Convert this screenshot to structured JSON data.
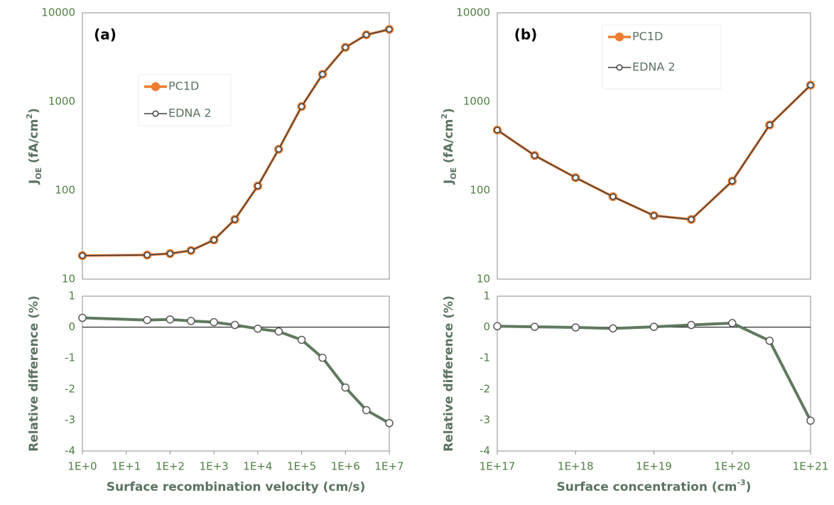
{
  "chart_data": [
    {
      "type": "line",
      "title": "(a)",
      "xscale": "log",
      "yscale": "log",
      "xlim": [
        1,
        10000000
      ],
      "ylim": [
        10,
        10000
      ],
      "yticks": [
        10,
        100,
        1000,
        10000
      ],
      "ylabel": [
        "J",
        "OE",
        " (fA/cm",
        "2",
        ")"
      ],
      "x": [
        1,
        30,
        100,
        300,
        1000,
        3000,
        10000,
        30000,
        100000,
        300000,
        1000000,
        3000000,
        10000000
      ],
      "series": [
        {
          "name": "PC1D",
          "color": "#ed7d31",
          "values": [
            18.4,
            18.7,
            19.4,
            21,
            27.6,
            47,
            112,
            290,
            880,
            2030,
            4080,
            5650,
            6500
          ]
        },
        {
          "name": "EDNA 2",
          "color": "#404040",
          "values": [
            18.4,
            18.7,
            19.4,
            21,
            27.6,
            47,
            112,
            290,
            880,
            2030,
            4080,
            5650,
            6500
          ]
        }
      ]
    },
    {
      "type": "line",
      "xscale": "log",
      "yscale": "linear",
      "xlim": [
        1,
        10000000
      ],
      "xticks": [
        {
          "value": 1,
          "label": "1E+0"
        },
        {
          "value": 10,
          "label": "1E+1"
        },
        {
          "value": 100,
          "label": "1E+2"
        },
        {
          "value": 1000,
          "label": "1E+3"
        },
        {
          "value": 10000,
          "label": "1E+4"
        },
        {
          "value": 100000,
          "label": "1E+5"
        },
        {
          "value": 1000000,
          "label": "1E+6"
        },
        {
          "value": 10000000,
          "label": "1E+7"
        }
      ],
      "ylim": [
        -4,
        1
      ],
      "yticks": [
        1,
        0,
        -1,
        -2,
        -3,
        -4
      ],
      "xlabel": [
        "Surface recombination velocity (cm/s)"
      ],
      "ylabel": [
        "Relative difference (%)"
      ],
      "x": [
        1,
        30,
        100,
        300,
        1000,
        3000,
        10000,
        30000,
        100000,
        300000,
        1000000,
        3000000,
        10000000
      ],
      "color": "#5e7a5e",
      "values": [
        0.3,
        0.23,
        0.25,
        0.2,
        0.16,
        0.07,
        -0.05,
        -0.14,
        -0.41,
        -0.99,
        -1.95,
        -2.68,
        -3.1
      ]
    },
    {
      "type": "line",
      "title": "(b)",
      "xscale": "log",
      "yscale": "log",
      "xlim": [
        1e+17,
        1e+21
      ],
      "ylim": [
        10,
        10000
      ],
      "yticks": [
        10,
        100,
        1000,
        10000
      ],
      "ylabel": [
        "J",
        "OE",
        " (fA/cm",
        "2",
        ")"
      ],
      "x": [
        1e+17,
        3e+17,
        1e+18,
        3e+18,
        1e+19,
        3e+19,
        1e+20,
        3e+20,
        1e+21
      ],
      "series": [
        {
          "name": "PC1D",
          "color": "#ed7d31",
          "values": [
            478,
            247,
            139,
            85,
            52,
            47,
            127,
            545,
            1530
          ]
        },
        {
          "name": "EDNA 2",
          "color": "#404040",
          "values": [
            478,
            247,
            139,
            85,
            52,
            47,
            127,
            545,
            1530
          ]
        }
      ]
    },
    {
      "type": "line",
      "xscale": "log",
      "yscale": "linear",
      "xlim": [
        1e+17,
        1e+21
      ],
      "xticks": [
        {
          "value": 1e+17,
          "label": "1E+17"
        },
        {
          "value": 1e+18,
          "label": "1E+18"
        },
        {
          "value": 1e+19,
          "label": "1E+19"
        },
        {
          "value": 1e+20,
          "label": "1E+20"
        },
        {
          "value": 1e+21,
          "label": "1E+21"
        }
      ],
      "ylim": [
        -4,
        1
      ],
      "yticks": [
        1,
        0,
        -1,
        -2,
        -3,
        -4
      ],
      "xlabel": [
        "Surface concentration (cm",
        "-3",
        ")"
      ],
      "ylabel": [
        "Relative difference (%)"
      ],
      "x": [
        1e+17,
        3e+17,
        1e+18,
        3e+18,
        1e+19,
        3e+19,
        1e+20,
        3e+20,
        1e+21
      ],
      "color": "#5e7a5e",
      "values": [
        0.03,
        0.01,
        -0.01,
        -0.04,
        0.01,
        0.07,
        0.13,
        -0.44,
        -3.02
      ]
    }
  ]
}
